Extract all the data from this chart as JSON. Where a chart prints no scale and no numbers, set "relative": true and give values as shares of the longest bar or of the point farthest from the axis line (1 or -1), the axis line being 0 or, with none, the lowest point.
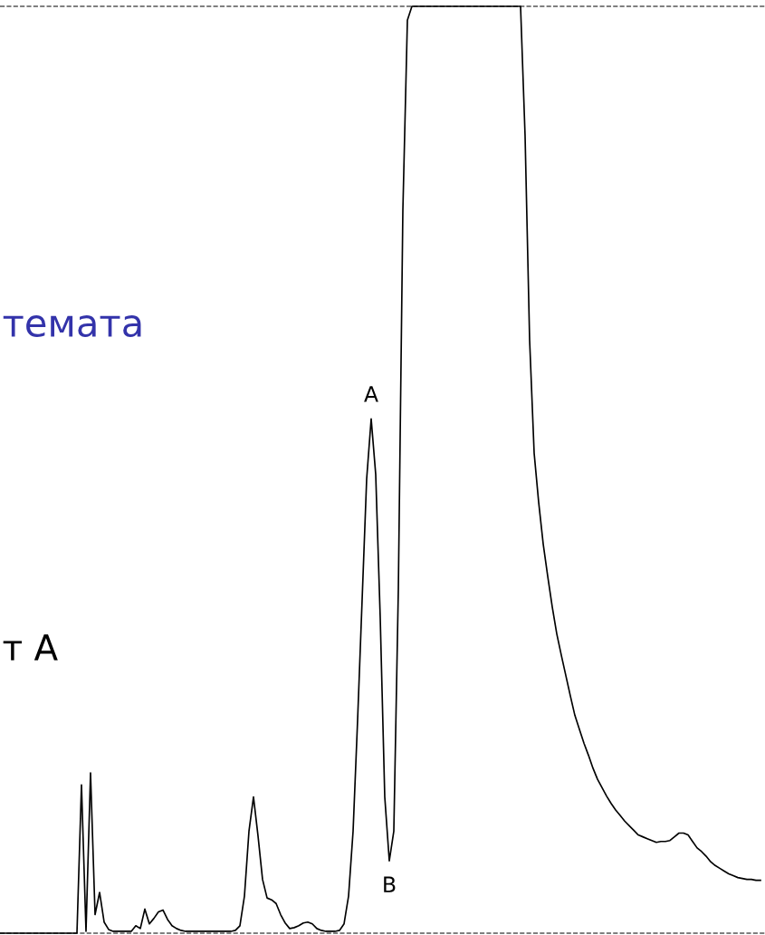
{
  "chart_data": {
    "type": "line",
    "relative": true,
    "grid": false,
    "legend": false,
    "marker": "none",
    "line_style": "solid",
    "categories": [
      null,
      null,
      null,
      null,
      null,
      null,
      null,
      null,
      null,
      null,
      null,
      null,
      null,
      null,
      null,
      null,
      null,
      null,
      null,
      null,
      null,
      null,
      null,
      null,
      null,
      null,
      null,
      null,
      null,
      null,
      null,
      null,
      null,
      null,
      null,
      null,
      null,
      null,
      null,
      null,
      null,
      null,
      null,
      null,
      null,
      null,
      null,
      null,
      null,
      null,
      null,
      null,
      null,
      null,
      null,
      null,
      null,
      null,
      null,
      null,
      null,
      null,
      null,
      null,
      null,
      null,
      null,
      null,
      null,
      null,
      null,
      null,
      null,
      null,
      null,
      null,
      null,
      null,
      null,
      null,
      null,
      null,
      null,
      null,
      null,
      null,
      null,
      null,
      null,
      null,
      null,
      null,
      null,
      null,
      null,
      null,
      null,
      null,
      null,
      null,
      null,
      null,
      null,
      null,
      null,
      null,
      null,
      null,
      null,
      null,
      null,
      null,
      null,
      null,
      null,
      null,
      null,
      null,
      null,
      null,
      null,
      null,
      null,
      null,
      null,
      null,
      null,
      null,
      null,
      null,
      null,
      null,
      null,
      null,
      null,
      null,
      null,
      null,
      null,
      null,
      null,
      null,
      null,
      null,
      null,
      null,
      null,
      null,
      null,
      null,
      null,
      null,
      null,
      null,
      null,
      null,
      null,
      null,
      null,
      null,
      null,
      null,
      null,
      null,
      null,
      null,
      null,
      null,
      null
    ],
    "series": [
      {
        "color": "#000000",
        "values": [
          0,
          0,
          0,
          0,
          0,
          0,
          0,
          0,
          0,
          0,
          0,
          0,
          0,
          0,
          0,
          0,
          0,
          0,
          0.16,
          0.002,
          0.173,
          0.02,
          0.044,
          0.012,
          0.004,
          0.002,
          0.002,
          0.002,
          0.002,
          0.002,
          0.008,
          0.005,
          0.026,
          0.01,
          0.016,
          0.023,
          0.025,
          0.015,
          0.008,
          0.005,
          0.003,
          0.002,
          0.002,
          0.002,
          0.002,
          0.002,
          0.002,
          0.002,
          0.002,
          0.002,
          0.002,
          0.002,
          0.003,
          0.008,
          0.04,
          0.11,
          0.147,
          0.105,
          0.058,
          0.038,
          0.036,
          0.032,
          0.02,
          0.011,
          0.005,
          0.006,
          0.008,
          0.011,
          0.012,
          0.01,
          0.005,
          0.003,
          0.002,
          0.002,
          0.002,
          0.003,
          0.01,
          0.04,
          0.11,
          0.23,
          0.36,
          0.49,
          0.555,
          0.495,
          0.34,
          0.147,
          0.078,
          0.11,
          0.371,
          0.78,
          0.985,
          1,
          1,
          1,
          1,
          1,
          1,
          1,
          1,
          1,
          1,
          1,
          1,
          1,
          1,
          1,
          1,
          1,
          1,
          1,
          1,
          1,
          1,
          1,
          1,
          1,
          0.86,
          0.64,
          0.518,
          0.465,
          0.42,
          0.385,
          0.352,
          0.323,
          0.3,
          0.278,
          0.256,
          0.235,
          0.22,
          0.205,
          0.192,
          0.178,
          0.166,
          0.157,
          0.148,
          0.14,
          0.133,
          0.127,
          0.121,
          0.116,
          0.111,
          0.106,
          0.104,
          0.102,
          0.1,
          0.098,
          0.099,
          0.099,
          0.1,
          0.104,
          0.108,
          0.108,
          0.106,
          0.099,
          0.092,
          0.088,
          0.083,
          0.077,
          0.073,
          0.07,
          0.067,
          0.064,
          0.062,
          0.06,
          0.059,
          0.058,
          0.058,
          0.057,
          0.057
        ]
      }
    ],
    "ref_lines": [
      {
        "axis": "y",
        "value": 1,
        "color": "#555555",
        "line_style": "dashed"
      },
      {
        "axis": "y",
        "value": 0,
        "color": "#555555",
        "line_style": "dashed"
      }
    ],
    "annotations": [
      {
        "text": "A",
        "y": 0.555
      },
      {
        "text": "B",
        "y": 0.078
      },
      "темата",
      "т A"
    ]
  }
}
